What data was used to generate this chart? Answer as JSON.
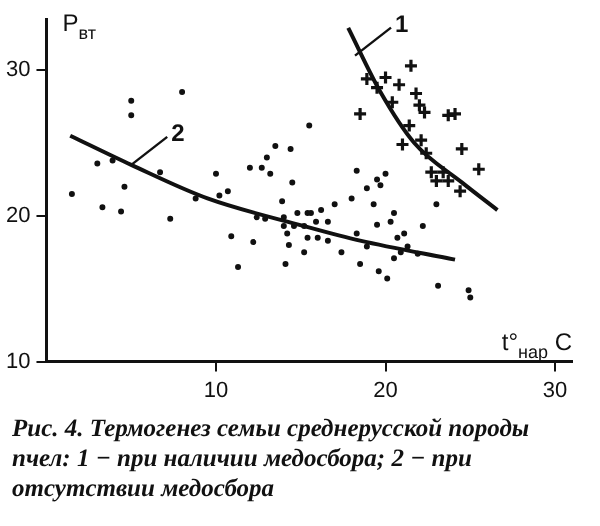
{
  "chart_data": {
    "type": "scatter",
    "xlabel": "t°$_{нар}$ C",
    "ylabel": "P$_{вт}$",
    "xlim": [
      0,
      31
    ],
    "ylim": [
      10,
      33.5
    ],
    "xticks": [
      10,
      20,
      30
    ],
    "yticks": [
      10,
      20,
      30
    ],
    "grid": false,
    "legend": false,
    "series": [
      {
        "marker": "cross",
        "color": "#111111",
        "x": [
          21.5,
          18.9,
          20.0,
          19.5,
          20.8,
          21.8,
          20.4,
          22.0,
          22.3,
          18.5,
          23.7,
          24.1,
          21.4,
          22.1,
          21.0,
          22.4,
          24.5,
          22.7,
          23.4,
          23.0,
          23.7,
          24.4,
          25.5
        ],
        "values": [
          30.3,
          29.4,
          29.5,
          28.8,
          29.0,
          28.4,
          27.8,
          27.6,
          27.1,
          27.0,
          26.9,
          27.0,
          26.2,
          25.2,
          24.9,
          24.3,
          24.6,
          23.0,
          23.0,
          22.4,
          22.4,
          21.7,
          23.2
        ]
      },
      {
        "marker": "circle",
        "color": "#111111",
        "x": [
          1.5,
          3.0,
          3.3,
          3.9,
          4.4,
          4.6,
          5.0,
          5.0,
          6.7,
          7.3,
          8.0,
          8.8,
          10.0,
          10.2,
          10.7,
          10.9,
          11.3,
          12.0,
          12.2,
          12.4,
          12.7,
          12.9,
          13.0,
          13.2,
          13.5,
          13.9,
          14.0,
          14.0,
          14.2,
          14.3,
          14.1,
          14.4,
          14.5,
          14.6,
          14.8,
          15.2,
          15.4,
          15.5,
          15.4,
          18.3,
          18.9,
          19.5,
          19.7,
          20.0,
          19.3,
          18.0,
          17.0,
          16.2,
          15.6,
          15.9,
          15.2,
          16.6,
          16.0,
          16.6,
          17.4,
          18.3,
          18.5,
          18.9,
          19.5,
          19.6,
          20.1,
          20.3,
          20.5,
          20.7,
          21.1,
          21.3,
          20.5,
          20.9,
          21.9,
          22.2,
          23.0,
          23.1,
          24.9,
          25.0
        ],
        "values": [
          21.5,
          23.6,
          20.6,
          23.8,
          20.3,
          22.0,
          27.9,
          26.9,
          23.0,
          19.8,
          28.5,
          21.2,
          22.9,
          21.4,
          21.7,
          18.6,
          16.5,
          23.3,
          18.2,
          19.9,
          23.3,
          19.8,
          24.0,
          22.9,
          24.8,
          21.0,
          19.9,
          19.3,
          18.8,
          18.0,
          16.7,
          24.6,
          22.3,
          19.3,
          20.2,
          17.5,
          18.5,
          26.2,
          20.2,
          23.1,
          21.9,
          22.5,
          22.1,
          22.9,
          20.8,
          21.2,
          20.8,
          20.4,
          20.2,
          19.6,
          19.3,
          19.6,
          18.5,
          18.3,
          17.5,
          18.8,
          16.7,
          17.9,
          19.4,
          16.2,
          15.7,
          19.6,
          20.2,
          18.5,
          18.8,
          17.9,
          17.1,
          17.5,
          17.4,
          19.3,
          20.8,
          15.2,
          14.9,
          14.4
        ]
      },
      {
        "type": "line",
        "marker": "none",
        "line_style": "solid",
        "color": "#111111",
        "x": [
          17.8,
          19.7,
          21.7,
          24.5,
          26.6
        ],
        "values": [
          32.9,
          28.5,
          25.0,
          22.3,
          20.4
        ]
      },
      {
        "type": "line",
        "marker": "none",
        "line_style": "solid",
        "color": "#111111",
        "x": [
          1.4,
          5.0,
          9.5,
          15.2,
          18.5,
          24.1
        ],
        "values": [
          25.5,
          23.5,
          21.2,
          19.3,
          18.3,
          17.0
        ]
      }
    ],
    "annotations": [
      {
        "text": "1",
        "x": 18.2,
        "y": 31.0
      },
      {
        "text": "2",
        "x": 5.0,
        "y": 23.5
      },
      "Рис. 4. Термогенез семьи среднерусской породы пчел: 1 − при наличии медосбора; 2 − при отсутствии медосбора"
    ]
  }
}
